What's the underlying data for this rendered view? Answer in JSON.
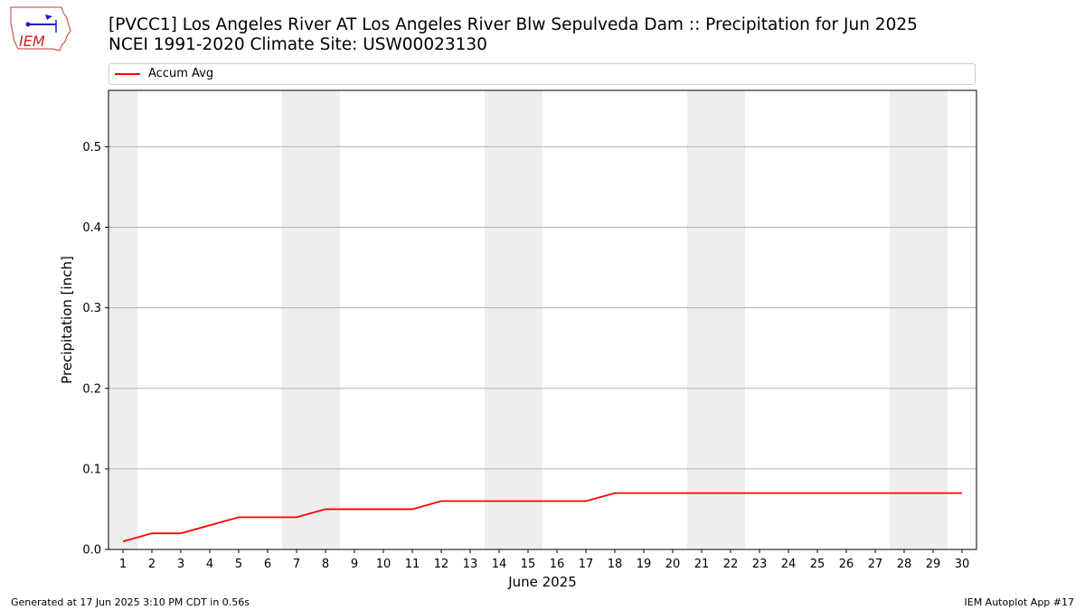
{
  "logo": {
    "text": "IEM"
  },
  "header": {
    "title_line1": "[PVCC1] Los Angeles River  AT Los Angeles River Blw Sepulveda Dam :: Precipitation for Jun 2025",
    "title_line2": "NCEI 1991-2020 Climate Site: USW00023130"
  },
  "legend": {
    "label": "Accum Avg",
    "color": "#ff0000"
  },
  "chart_data": {
    "type": "line",
    "title": "[PVCC1] Los Angeles River  AT Los Angeles River Blw Sepulveda Dam :: Precipitation for Jun 2025",
    "subtitle": "NCEI 1991-2020 Climate Site: USW00023130",
    "xlabel": "June 2025",
    "ylabel": "Precipitation [inch]",
    "x": [
      1,
      2,
      3,
      4,
      5,
      6,
      7,
      8,
      9,
      10,
      11,
      12,
      13,
      14,
      15,
      16,
      17,
      18,
      19,
      20,
      21,
      22,
      23,
      24,
      25,
      26,
      27,
      28,
      29,
      30
    ],
    "xlim": [
      0.5,
      30.5
    ],
    "ylim": [
      0,
      0.57
    ],
    "yticks": [
      0.0,
      0.1,
      0.2,
      0.3,
      0.4,
      0.5
    ],
    "ytick_labels": [
      "0.0",
      "0.1",
      "0.2",
      "0.3",
      "0.4",
      "0.5"
    ],
    "grid": "horizontal",
    "weekend_shading": [
      [
        0.5,
        1.5
      ],
      [
        6.5,
        8.5
      ],
      [
        13.5,
        15.5
      ],
      [
        20.5,
        22.5
      ],
      [
        27.5,
        29.5
      ]
    ],
    "series": [
      {
        "name": "Accum Avg",
        "color": "#ff0000",
        "values": [
          0.01,
          0.02,
          0.02,
          0.03,
          0.04,
          0.04,
          0.04,
          0.05,
          0.05,
          0.05,
          0.05,
          0.06,
          0.06,
          0.06,
          0.06,
          0.06,
          0.06,
          0.07,
          0.07,
          0.07,
          0.07,
          0.07,
          0.07,
          0.07,
          0.07,
          0.07,
          0.07,
          0.07,
          0.07,
          0.07
        ]
      }
    ]
  },
  "footer": {
    "generated": "Generated at 17 Jun 2025 3:10 PM CDT in 0.56s",
    "app": "IEM Autoplot App #17"
  }
}
